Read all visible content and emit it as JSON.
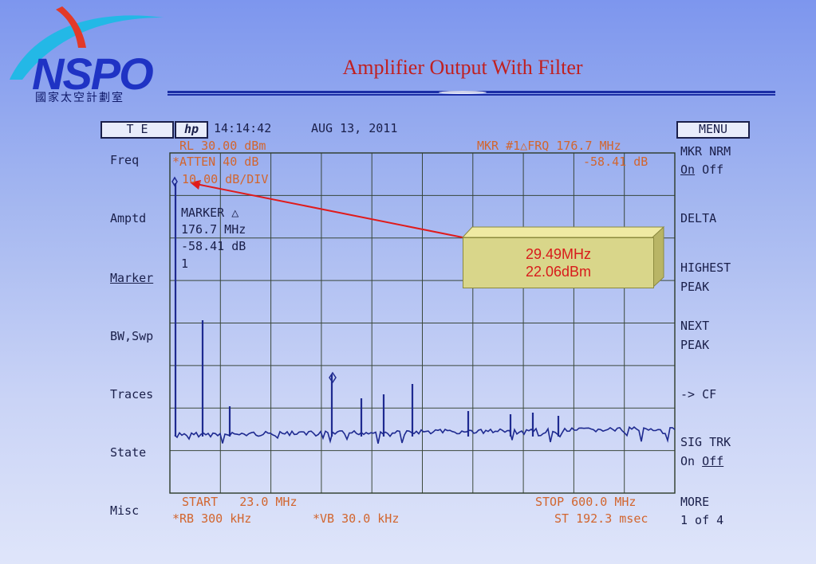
{
  "logo": {
    "name": "NSPO",
    "subtitle": "國家太空計劃室"
  },
  "slide_title": "Amplifier Output With Filter",
  "analyzer": {
    "mode_button": "T E",
    "hp_logo": "hp",
    "time": "14:14:42",
    "date": "AUG 13, 2011",
    "ref_level": "RL 30.00 dBm",
    "attenuation": "*ATTEN 40 dB",
    "scale": "10.00 dB/DIV",
    "marker_header": "MKR #1△FRQ 176.7 MHz",
    "marker_value": "-58.41 dB",
    "marker_box": {
      "title": "MARKER △",
      "freq": "176.7 MHz",
      "level": "-58.41 dB",
      "index": "1"
    },
    "start": "START   23.0 MHz",
    "stop": "STOP 600.0 MHz",
    "rbw": "*RB 300 kHz",
    "vbw": "*VB 30.0 kHz",
    "sweep": "ST 192.3 msec",
    "menu_button": "MENU",
    "left_menu": [
      "Freq",
      "Amptd",
      "Marker",
      "BW,Swp",
      "Traces",
      "State",
      "Misc"
    ],
    "right_menu": {
      "mkr_nrm": "MKR NRM",
      "on": "On",
      "off": "Off",
      "delta": "DELTA",
      "highest": "HIGHEST",
      "peak": "PEAK",
      "next": "NEXT",
      "next_peak": "PEAK",
      "cf": "-> CF",
      "sig_trk": "SIG TRK",
      "sig_on": "On",
      "sig_off": "Off",
      "more": "MORE",
      "of": "1 of 4"
    }
  },
  "callout": {
    "line1": "29.49MHz",
    "line2": "22.06dBm"
  },
  "colors": {
    "accent_orange": "#d2652e",
    "navy": "#1a1f4a",
    "callout_text": "#d81b1b",
    "callout_fill": "#d9d68a"
  }
}
